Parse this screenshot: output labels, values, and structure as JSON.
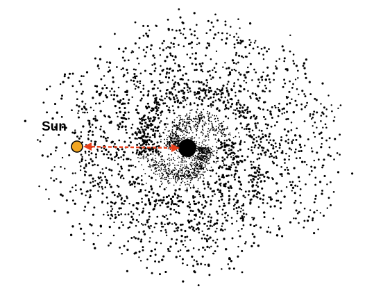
{
  "labels": {
    "sun": "Sun"
  },
  "colors": {
    "background": "#ffffff",
    "stars": "#000000",
    "sun_fill": "#f2a623",
    "sun_stroke": "#000000",
    "galactic_center": "#000000",
    "distance_arrow": "#e8401c"
  },
  "icons": {
    "sun": "sun-marker",
    "center": "galactic-center-dot",
    "arrow": "double-headed-dashed-arrow"
  }
}
